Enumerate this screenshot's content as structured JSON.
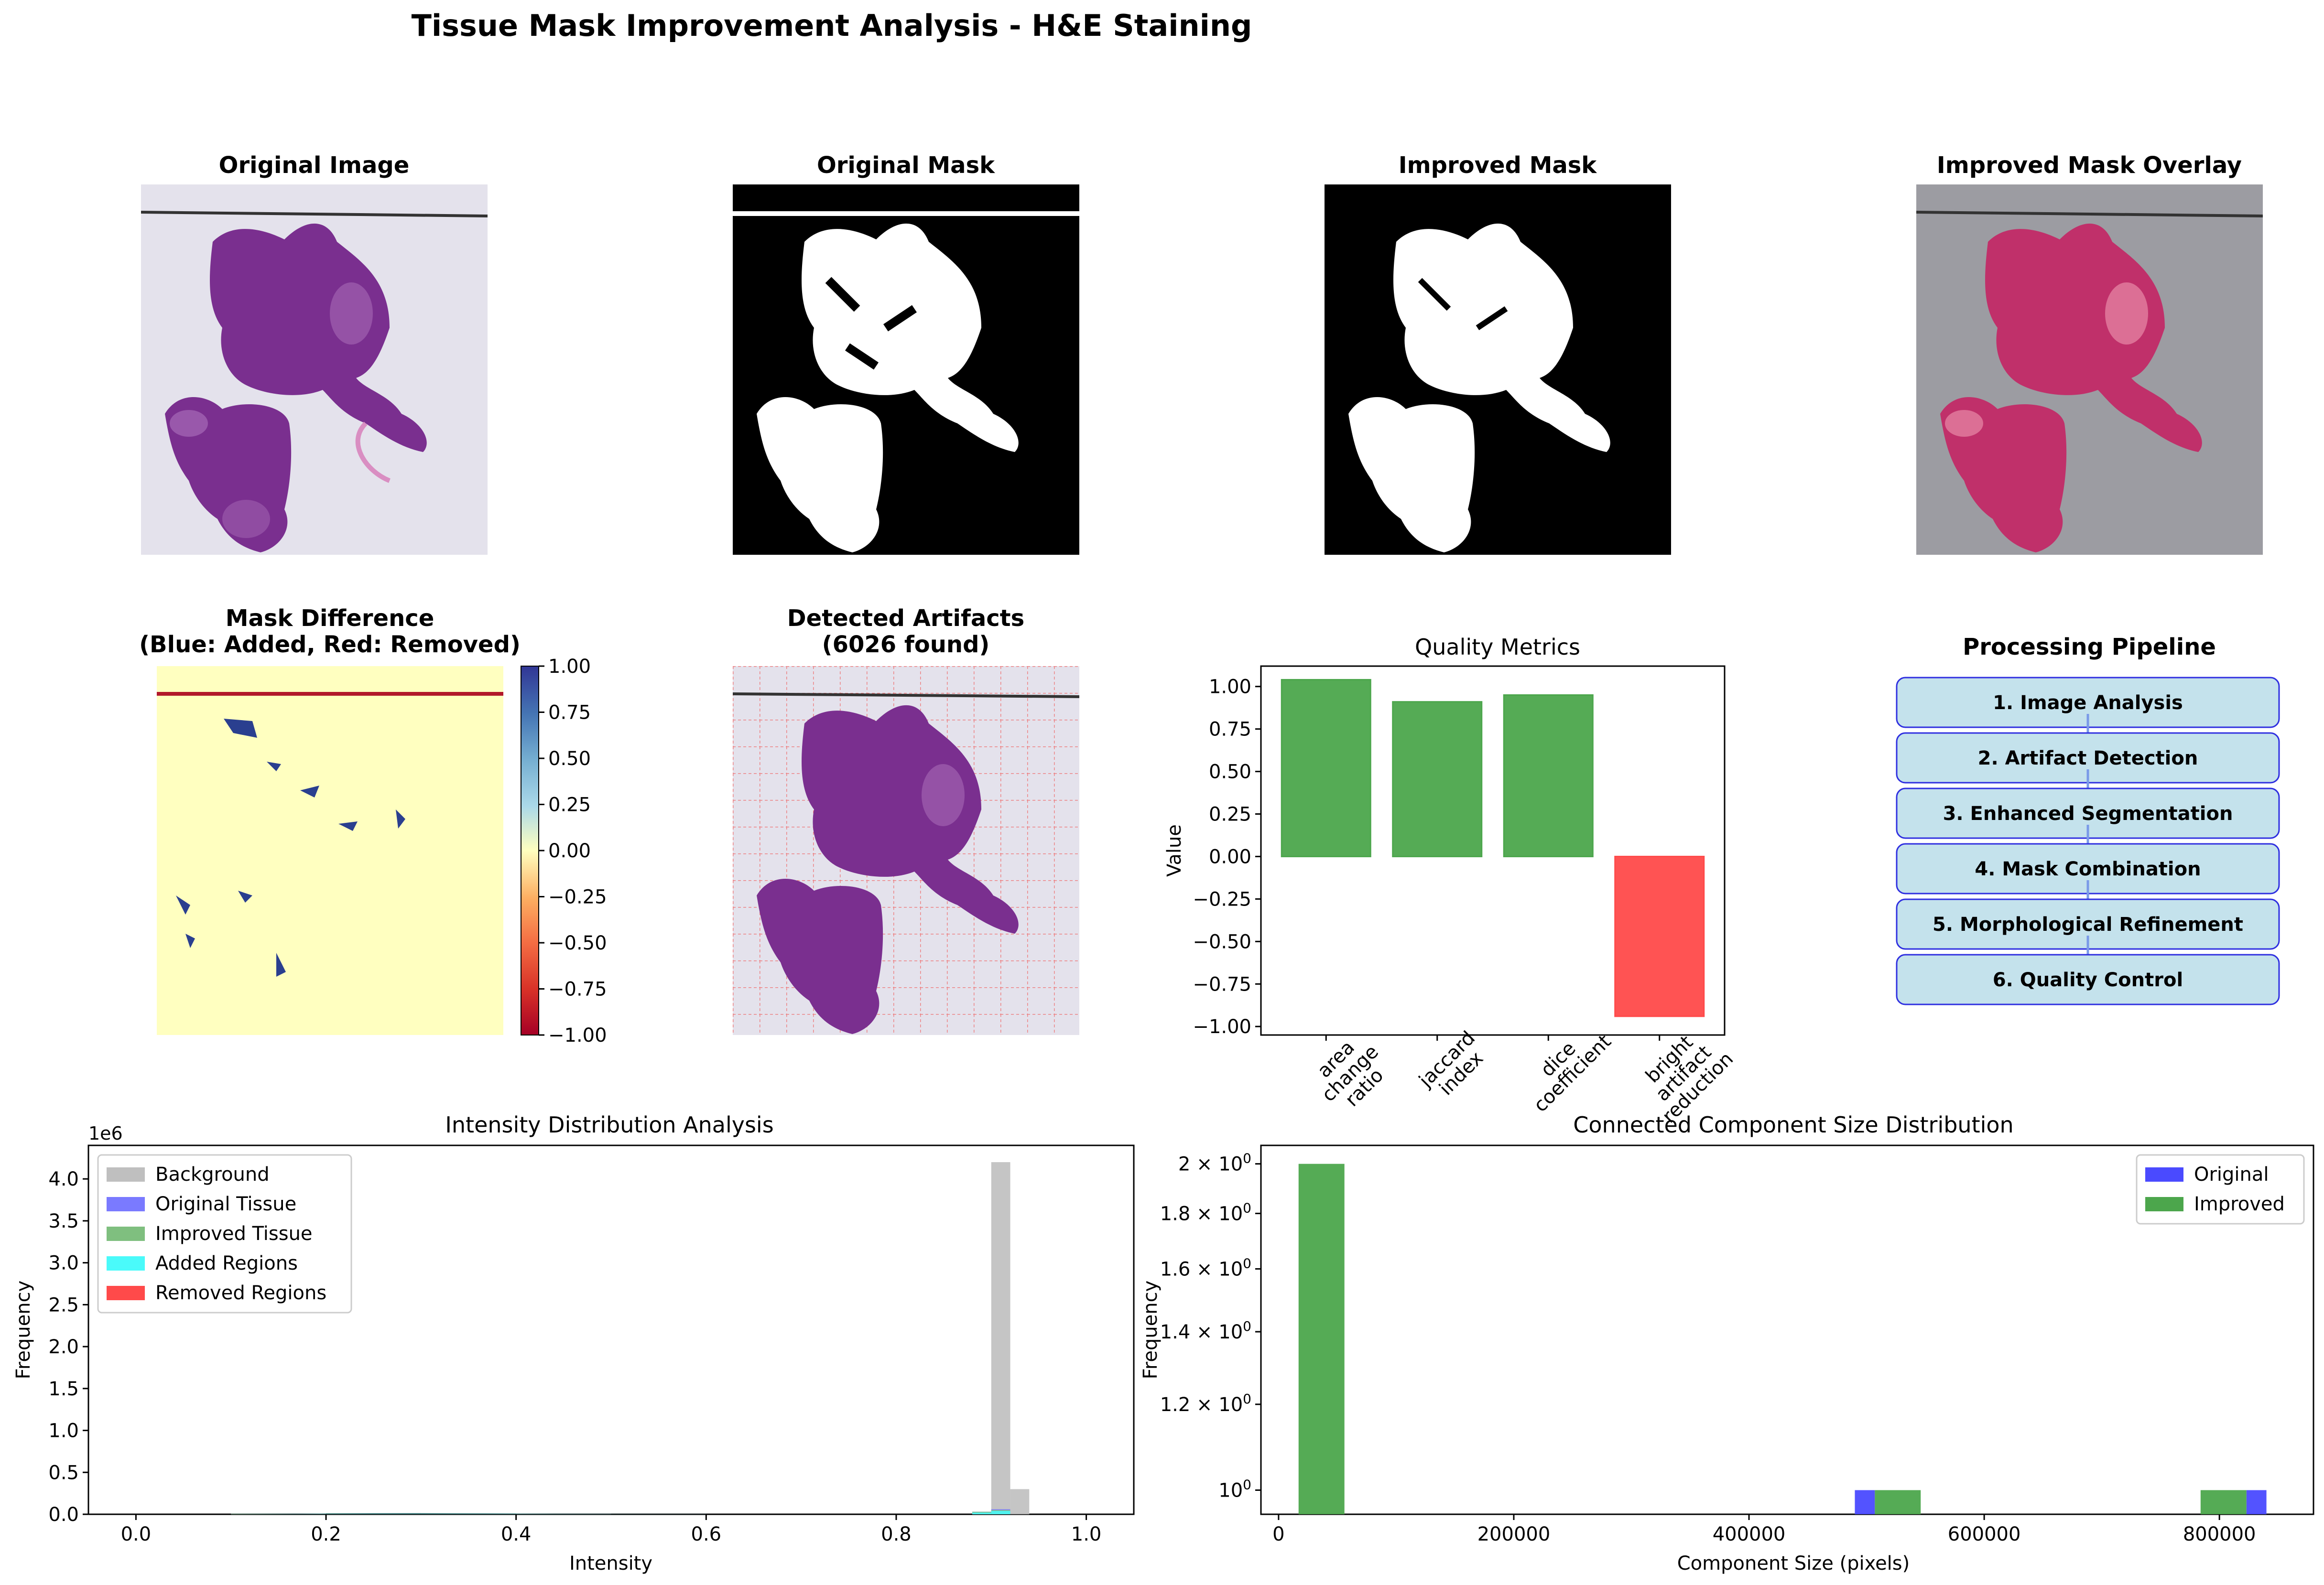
{
  "figure": {
    "suptitle": "Tissue Mask Improvement Analysis - H&E Staining"
  },
  "panels": {
    "original_image": {
      "title": "Original Image"
    },
    "original_mask": {
      "title": "Original Mask"
    },
    "improved_mask": {
      "title": "Improved Mask"
    },
    "overlay": {
      "title": "Improved Mask Overlay"
    },
    "mask_difference": {
      "title_line1": "Mask Difference",
      "title_line2": "(Blue: Added, Red: Removed)",
      "colorbar_ticks": [
        "1.00",
        "0.75",
        "0.50",
        "0.25",
        "0.00",
        "−0.25",
        "−0.50",
        "−0.75",
        "−1.00"
      ],
      "colorbar_range": [
        -1.0,
        1.0
      ]
    },
    "artifacts": {
      "title_line1": "Detected Artifacts",
      "title_line2": "(6026 found)"
    },
    "pipeline": {
      "title": "Processing Pipeline",
      "steps": [
        "1. Image Analysis",
        "2. Artifact Detection",
        "3. Enhanced Segmentation",
        "4. Mask Combination",
        "5. Morphological Refinement",
        "6. Quality Control"
      ]
    }
  },
  "colors": {
    "tissue_purple": "#7a2f8f",
    "slide_bg": "#e4e2ec",
    "overlay_bg": "#9c9ca2",
    "added_blue": "#2a3f8f",
    "removed_red": "#b2182b",
    "diff_bg": "#ffffc0",
    "bar_green": "#4ca64c",
    "bar_red": "#ff4a4a",
    "pipeline_fill": "#c4e2ec",
    "pipeline_edge": "#2f2fe0"
  },
  "chart_data": [
    {
      "type": "bar",
      "title": "Quality Metrics",
      "ylabel": "Value",
      "categories": [
        "area\nchange\nratio",
        "jaccard\nindex",
        "dice\ncoefficient",
        "bright\nartifact\nreduction"
      ],
      "values": [
        1.04,
        0.91,
        0.95,
        -0.94
      ],
      "bar_colors": [
        "#4ca64c",
        "#4ca64c",
        "#4ca64c",
        "#ff4a4a"
      ],
      "ylim": [
        -1.05,
        1.12
      ],
      "yticks": [
        1.0,
        0.75,
        0.5,
        0.25,
        0.0,
        -0.25,
        -0.5,
        -0.75,
        -1.0
      ],
      "ytick_labels": [
        "1.00",
        "0.75",
        "0.50",
        "0.25",
        "0.00",
        "−0.25",
        "−0.50",
        "−0.75",
        "−1.00"
      ]
    },
    {
      "type": "bar",
      "subtype": "histogram",
      "title": "Intensity Distribution Analysis",
      "xlabel": "Intensity",
      "ylabel": "Frequency",
      "y_offset_label": "1e6",
      "xlim": [
        -0.05,
        1.05
      ],
      "ylim": [
        0,
        4.4
      ],
      "xticks": [
        0.0,
        0.2,
        0.4,
        0.6,
        0.8,
        1.0
      ],
      "xtick_labels": [
        "0.0",
        "0.2",
        "0.4",
        "0.6",
        "0.8",
        "1.0"
      ],
      "yticks": [
        0.0,
        0.5,
        1.0,
        1.5,
        2.0,
        2.5,
        3.0,
        3.5,
        4.0
      ],
      "ytick_labels": [
        "0.0",
        "0.5",
        "1.0",
        "1.5",
        "2.0",
        "2.5",
        "3.0",
        "3.5",
        "4.0"
      ],
      "legend_position": "upper left",
      "series": [
        {
          "name": "Background",
          "color": "#bfbfbf",
          "bins": [
            [
              0.88,
              0.9,
              0.03
            ],
            [
              0.9,
              0.92,
              4.2
            ],
            [
              0.92,
              0.94,
              0.3
            ]
          ]
        },
        {
          "name": "Original Tissue",
          "color": "#7a7aff",
          "bins": [
            [
              0.1,
              0.2,
              0.006
            ],
            [
              0.2,
              0.3,
              0.012
            ],
            [
              0.3,
              0.4,
              0.01
            ],
            [
              0.4,
              0.5,
              0.004
            ],
            [
              0.5,
              0.6,
              0.001
            ],
            [
              0.88,
              0.9,
              0.03
            ],
            [
              0.9,
              0.92,
              0.06
            ]
          ]
        },
        {
          "name": "Improved Tissue",
          "color": "#7fbf7f",
          "bins": [
            [
              0.1,
              0.2,
              0.006
            ],
            [
              0.2,
              0.3,
              0.012
            ],
            [
              0.3,
              0.4,
              0.01
            ],
            [
              0.4,
              0.5,
              0.004
            ],
            [
              0.5,
              0.6,
              0.001
            ],
            [
              0.88,
              0.9,
              0.03
            ],
            [
              0.9,
              0.92,
              0.05
            ]
          ]
        },
        {
          "name": "Added Regions",
          "color": "#4afafa",
          "bins": [
            [
              0.88,
              0.9,
              0.02
            ],
            [
              0.9,
              0.92,
              0.04
            ]
          ]
        },
        {
          "name": "Removed Regions",
          "color": "#ff4a4a",
          "bins": []
        }
      ],
      "overlap_curve": {
        "color": "#2f6f6f",
        "x": [
          0.1,
          0.15,
          0.2,
          0.25,
          0.3,
          0.35,
          0.4,
          0.45,
          0.5,
          0.55,
          0.6
        ],
        "y": [
          0.001,
          0.004,
          0.009,
          0.012,
          0.013,
          0.011,
          0.008,
          0.005,
          0.003,
          0.0015,
          0.0005
        ]
      }
    },
    {
      "type": "bar",
      "subtype": "histogram",
      "title": "Connected Component Size Distribution",
      "xlabel": "Component Size (pixels)",
      "ylabel": "Frequency",
      "yscale": "log",
      "xlim": [
        -15000,
        880000
      ],
      "ylim": [
        0.95,
        2.08
      ],
      "xticks": [
        0,
        200000,
        400000,
        600000,
        800000
      ],
      "xtick_labels": [
        "0",
        "200000",
        "400000",
        "600000",
        "800000"
      ],
      "yticks": [
        1.0,
        1.2,
        1.4,
        1.6,
        1.8,
        2.0
      ],
      "ytick_mantissas": [
        "",
        "1.2",
        "1.4",
        "1.6",
        "1.8",
        "2"
      ],
      "ytick_exponent": "0",
      "legend_position": "upper right",
      "series": [
        {
          "name": "Original",
          "color": "#4a4aff",
          "bins": [
            [
              490000,
              507000,
              1
            ],
            [
              823000,
              840000,
              1
            ]
          ]
        },
        {
          "name": "Improved",
          "color": "#4ca64c",
          "bins": [
            [
              17000,
              56000,
              2
            ],
            [
              507000,
              546000,
              1
            ],
            [
              784000,
              823000,
              1
            ]
          ]
        }
      ]
    }
  ]
}
